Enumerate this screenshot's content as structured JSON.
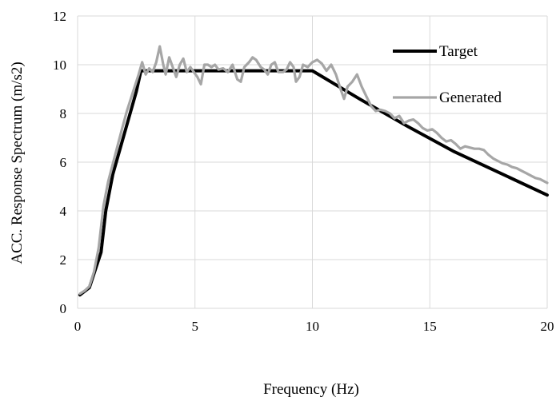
{
  "chart_data": {
    "type": "line",
    "title": "",
    "xlabel": "Frequency (Hz)",
    "ylabel": "ACC. Response Spectrum (m/s2)",
    "xlim": [
      0,
      20
    ],
    "ylim": [
      0,
      12
    ],
    "x_ticks": [
      0,
      5,
      10,
      15,
      20
    ],
    "y_ticks": [
      0,
      2,
      4,
      6,
      8,
      10,
      12
    ],
    "grid": "vertical-and-horizontal",
    "legend_position": "top-right",
    "series": [
      {
        "name": "Target",
        "color": "#000000",
        "points": [
          [
            0.1,
            0.55
          ],
          [
            0.5,
            0.85
          ],
          [
            1.0,
            2.3
          ],
          [
            1.2,
            4.0
          ],
          [
            1.5,
            5.5
          ],
          [
            2.0,
            7.2
          ],
          [
            2.5,
            8.9
          ],
          [
            2.7,
            9.75
          ],
          [
            10.0,
            9.75
          ],
          [
            12.0,
            8.6
          ],
          [
            14.0,
            7.5
          ],
          [
            16.0,
            6.45
          ],
          [
            18.0,
            5.55
          ],
          [
            20.0,
            4.65
          ]
        ]
      },
      {
        "name": "Generated",
        "color": "#a6a6a6",
        "points": [
          [
            0.1,
            0.6
          ],
          [
            0.3,
            0.72
          ],
          [
            0.5,
            0.9
          ],
          [
            0.7,
            1.5
          ],
          [
            0.9,
            2.5
          ],
          [
            1.1,
            4.2
          ],
          [
            1.3,
            5.2
          ],
          [
            1.6,
            6.3
          ],
          [
            1.9,
            7.4
          ],
          [
            2.1,
            8.1
          ],
          [
            2.4,
            9.0
          ],
          [
            2.6,
            9.6
          ],
          [
            2.75,
            10.1
          ],
          [
            2.9,
            9.6
          ],
          [
            3.05,
            9.85
          ],
          [
            3.2,
            9.7
          ],
          [
            3.35,
            10.1
          ],
          [
            3.5,
            10.75
          ],
          [
            3.65,
            10.0
          ],
          [
            3.75,
            9.6
          ],
          [
            3.9,
            10.3
          ],
          [
            4.05,
            9.9
          ],
          [
            4.2,
            9.5
          ],
          [
            4.35,
            10.0
          ],
          [
            4.5,
            10.25
          ],
          [
            4.65,
            9.7
          ],
          [
            4.8,
            9.9
          ],
          [
            4.95,
            9.7
          ],
          [
            5.1,
            9.5
          ],
          [
            5.25,
            9.2
          ],
          [
            5.4,
            10.0
          ],
          [
            5.55,
            10.0
          ],
          [
            5.7,
            9.9
          ],
          [
            5.85,
            10.0
          ],
          [
            6.0,
            9.8
          ],
          [
            6.2,
            9.85
          ],
          [
            6.4,
            9.7
          ],
          [
            6.6,
            10.0
          ],
          [
            6.8,
            9.4
          ],
          [
            6.95,
            9.3
          ],
          [
            7.1,
            9.9
          ],
          [
            7.3,
            10.1
          ],
          [
            7.45,
            10.3
          ],
          [
            7.6,
            10.2
          ],
          [
            7.8,
            9.9
          ],
          [
            7.95,
            9.8
          ],
          [
            8.1,
            9.6
          ],
          [
            8.25,
            10.0
          ],
          [
            8.4,
            10.1
          ],
          [
            8.55,
            9.7
          ],
          [
            8.75,
            9.7
          ],
          [
            8.9,
            9.8
          ],
          [
            9.05,
            10.1
          ],
          [
            9.2,
            9.9
          ],
          [
            9.3,
            9.3
          ],
          [
            9.45,
            9.5
          ],
          [
            9.6,
            10.0
          ],
          [
            9.8,
            9.9
          ],
          [
            10.0,
            10.1
          ],
          [
            10.2,
            10.2
          ],
          [
            10.4,
            10.05
          ],
          [
            10.6,
            9.75
          ],
          [
            10.8,
            10.0
          ],
          [
            11.0,
            9.6
          ],
          [
            11.2,
            9.0
          ],
          [
            11.35,
            8.6
          ],
          [
            11.5,
            9.1
          ],
          [
            11.7,
            9.3
          ],
          [
            11.9,
            9.6
          ],
          [
            12.1,
            9.1
          ],
          [
            12.3,
            8.7
          ],
          [
            12.5,
            8.3
          ],
          [
            12.7,
            8.1
          ],
          [
            12.9,
            8.15
          ],
          [
            13.1,
            8.1
          ],
          [
            13.3,
            8.0
          ],
          [
            13.5,
            7.8
          ],
          [
            13.7,
            7.9
          ],
          [
            13.9,
            7.6
          ],
          [
            14.1,
            7.7
          ],
          [
            14.3,
            7.75
          ],
          [
            14.5,
            7.6
          ],
          [
            14.7,
            7.4
          ],
          [
            14.9,
            7.3
          ],
          [
            15.1,
            7.35
          ],
          [
            15.3,
            7.2
          ],
          [
            15.5,
            7.0
          ],
          [
            15.7,
            6.85
          ],
          [
            15.9,
            6.9
          ],
          [
            16.1,
            6.75
          ],
          [
            16.3,
            6.55
          ],
          [
            16.5,
            6.65
          ],
          [
            16.7,
            6.6
          ],
          [
            16.9,
            6.55
          ],
          [
            17.1,
            6.55
          ],
          [
            17.3,
            6.5
          ],
          [
            17.5,
            6.3
          ],
          [
            17.7,
            6.15
          ],
          [
            17.9,
            6.05
          ],
          [
            18.1,
            5.95
          ],
          [
            18.3,
            5.9
          ],
          [
            18.5,
            5.8
          ],
          [
            18.7,
            5.75
          ],
          [
            18.9,
            5.65
          ],
          [
            19.1,
            5.55
          ],
          [
            19.3,
            5.45
          ],
          [
            19.5,
            5.35
          ],
          [
            19.7,
            5.3
          ],
          [
            19.9,
            5.2
          ],
          [
            20.0,
            5.15
          ]
        ]
      }
    ]
  }
}
